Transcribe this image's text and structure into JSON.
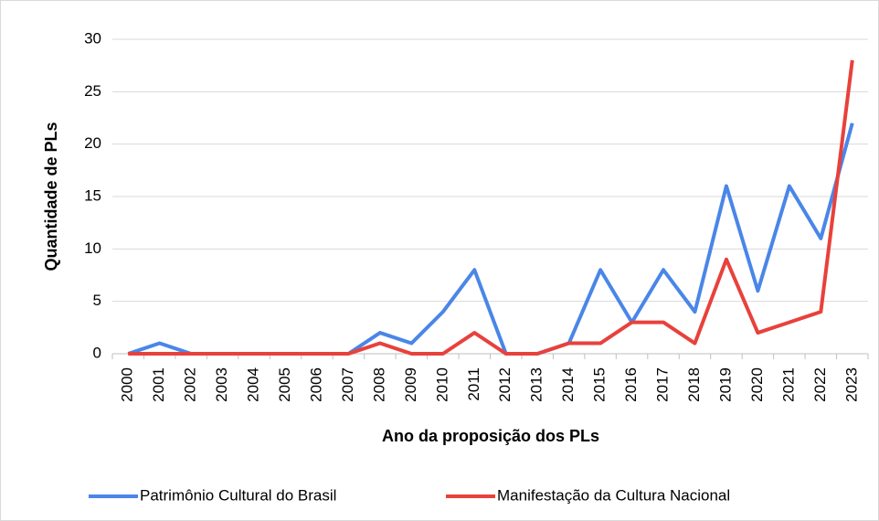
{
  "chart_data": {
    "type": "line",
    "x_label": "Ano da proposição dos PLs",
    "y_label": "Quantidade de PLs",
    "categories": [
      "2000",
      "2001",
      "2002",
      "2003",
      "2004",
      "2005",
      "2006",
      "2007",
      "2008",
      "2009",
      "2010",
      "2011",
      "2012",
      "2013",
      "2014",
      "2015",
      "2016",
      "2017",
      "2018",
      "2019",
      "2020",
      "2021",
      "2022",
      "2023"
    ],
    "series": [
      {
        "name": "Patrimônio Cultural do Brasil",
        "color": "#4a86e8",
        "values": [
          0,
          1,
          0,
          0,
          0,
          0,
          0,
          0,
          2,
          1,
          4,
          8,
          0,
          0,
          1,
          8,
          3,
          8,
          4,
          16,
          6,
          16,
          11,
          22
        ]
      },
      {
        "name": "Manifestação da Cultura Nacional",
        "color": "#e8413c",
        "values": [
          0,
          0,
          0,
          0,
          0,
          0,
          0,
          0,
          1,
          0,
          0,
          2,
          0,
          0,
          1,
          1,
          3,
          3,
          1,
          9,
          2,
          3,
          4,
          28
        ]
      }
    ],
    "ylim": [
      0,
      30
    ],
    "yticks": [
      0,
      5,
      10,
      15,
      20,
      25,
      30
    ],
    "grid": true,
    "legend": "bottom"
  }
}
